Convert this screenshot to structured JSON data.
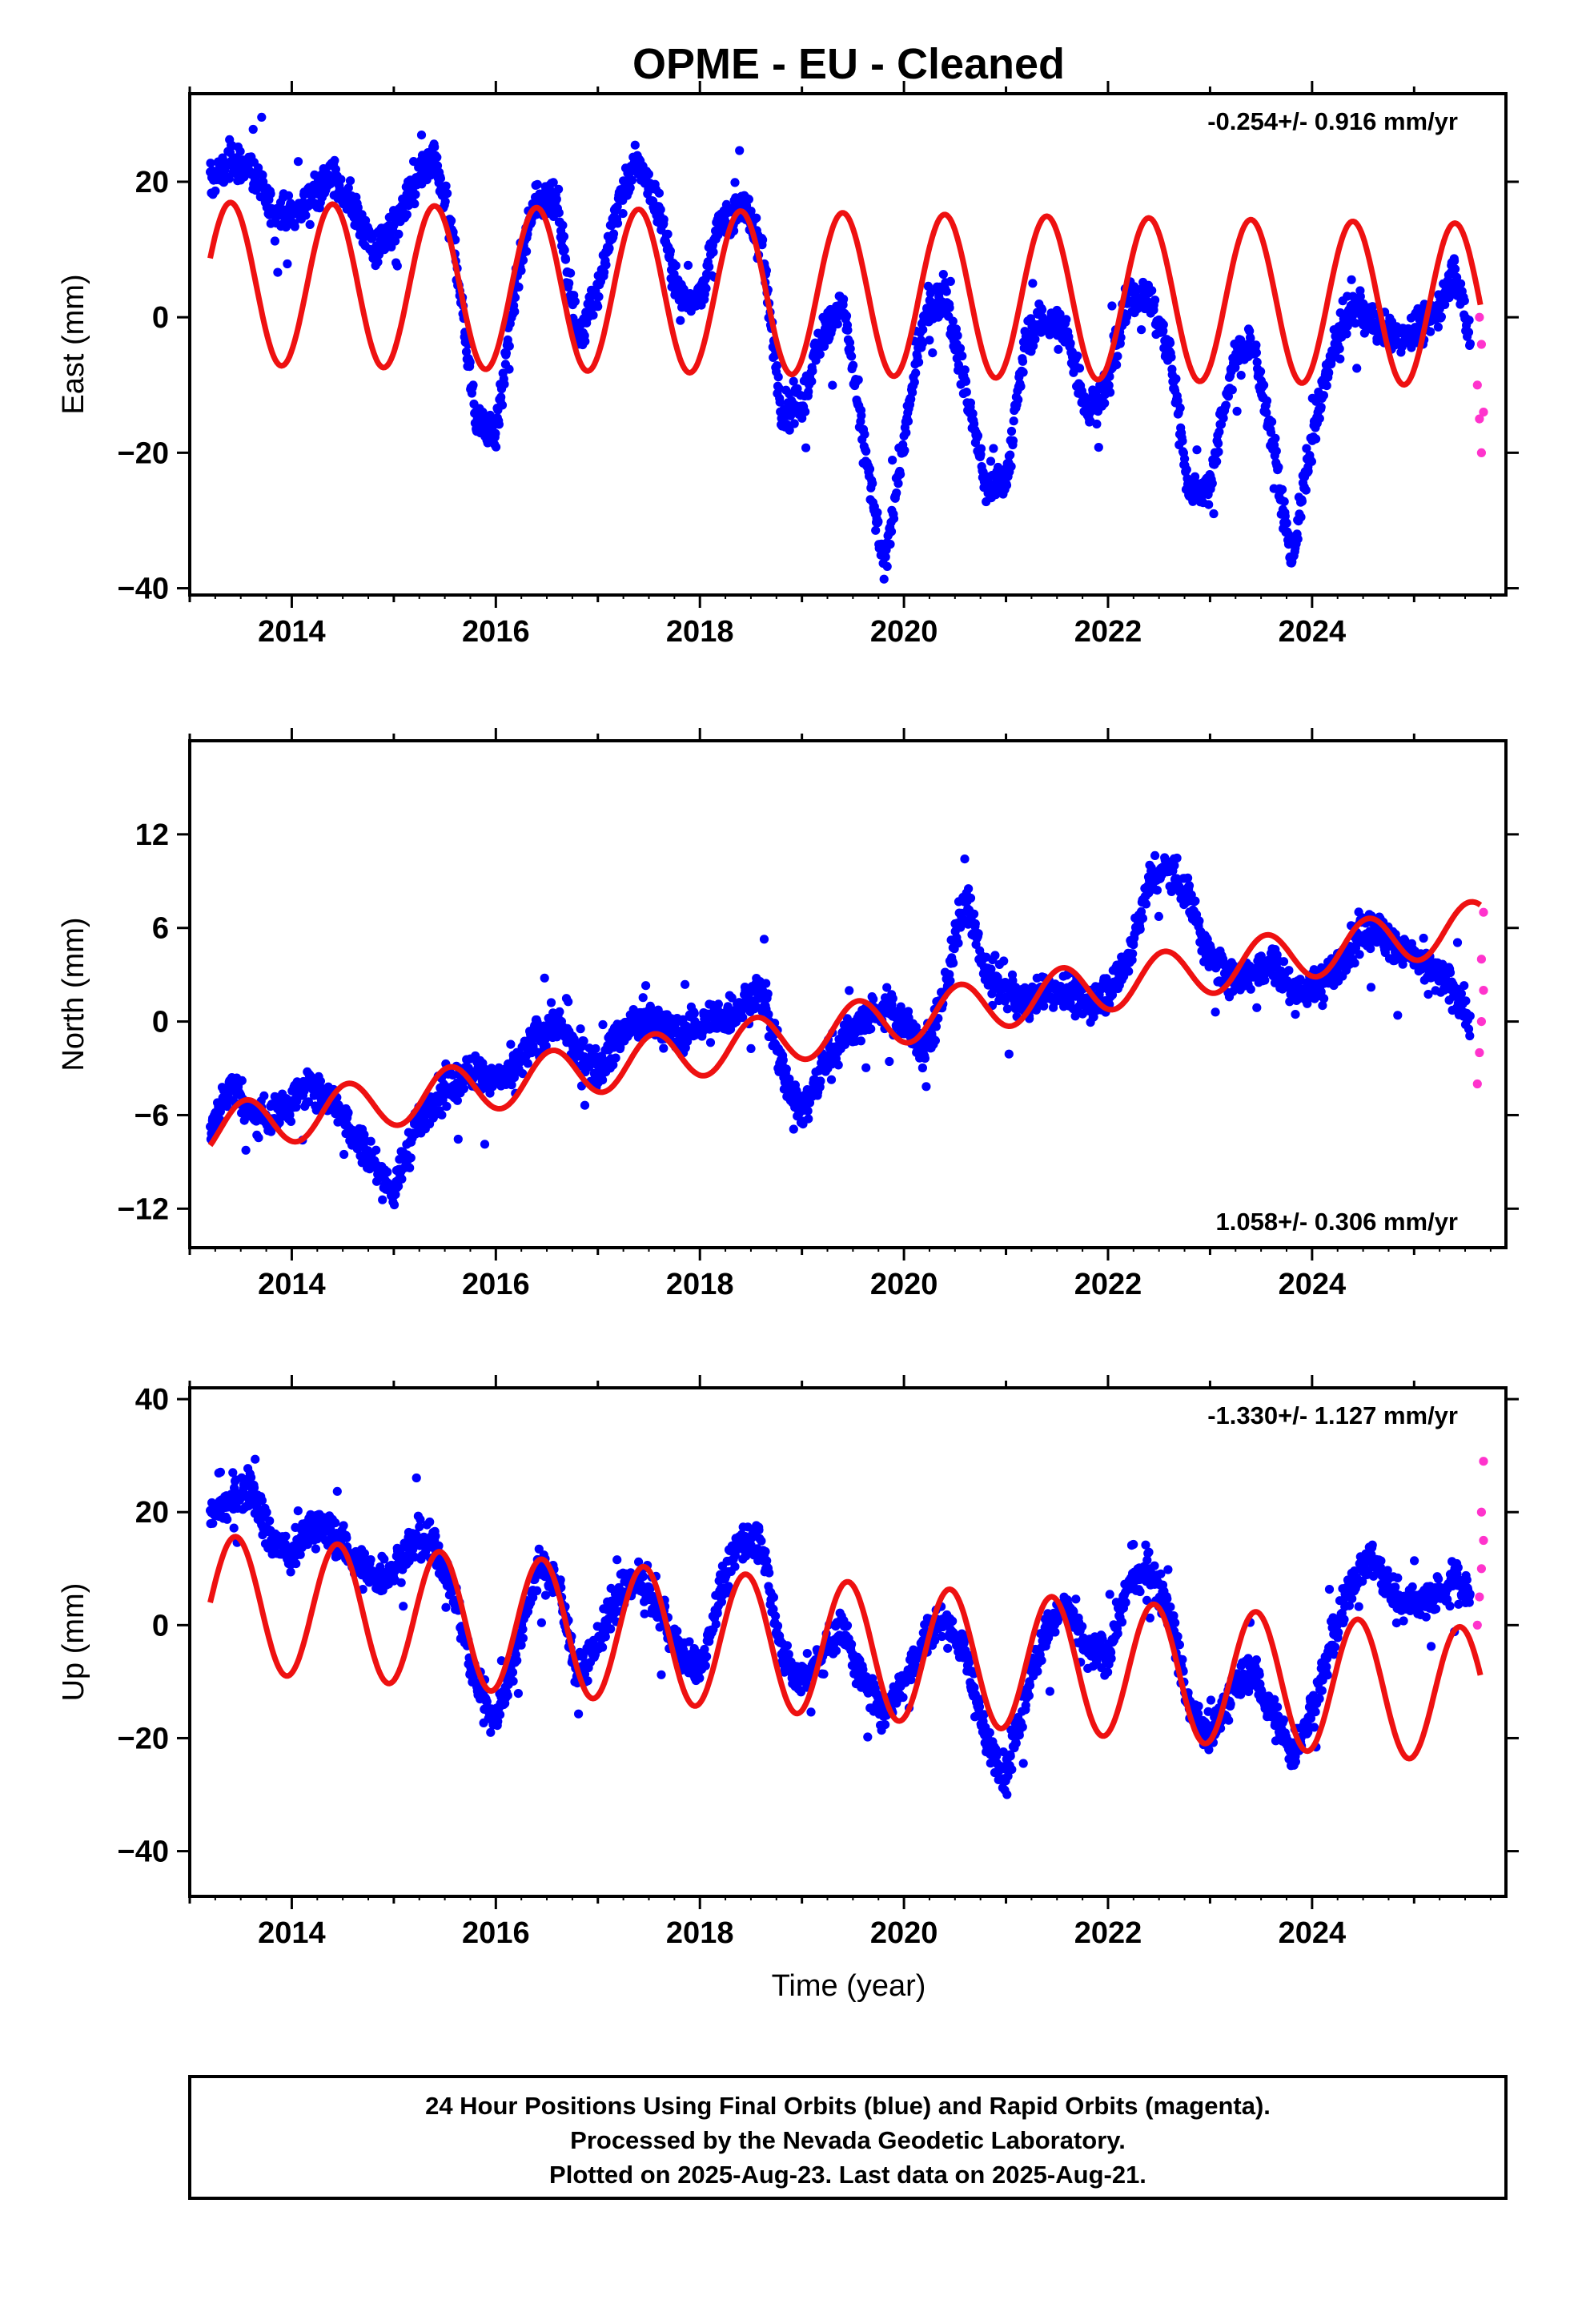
{
  "title": "OPME  - EU - Cleaned",
  "xlabel": "Time (year)",
  "footer": {
    "lines": [
      "24 Hour Positions Using Final Orbits (blue) and Rapid Orbits (magenta).",
      "Processed by the Nevada Geodetic Laboratory.",
      "Plotted on 2025-Aug-23. Last data on 2025-Aug-21."
    ]
  },
  "colors": {
    "final_orbits": "#0000ff",
    "rapid_orbits": "#ff33cc",
    "model": "#ee1111",
    "frame": "#000000"
  },
  "chart_data": [
    {
      "type": "scatter",
      "component": "East",
      "ylabel": "East (mm)",
      "rate": "-0.254+/- 0.916 mm/yr",
      "rate_position": "top-right",
      "xlim": [
        2013.0,
        2025.9
      ],
      "ylim": [
        -41,
        33
      ],
      "xticks": [
        2014,
        2016,
        2018,
        2020,
        2022,
        2024
      ],
      "yticks": [
        -40,
        -20,
        0,
        20
      ],
      "grid": false,
      "series": [
        {
          "kind": "final_orbits_scatter",
          "points": [
            [
              2013.2,
              20
            ],
            [
              2013.4,
              23
            ],
            [
              2013.6,
              22
            ],
            [
              2013.8,
              16
            ],
            [
              2014.0,
              15
            ],
            [
              2014.2,
              18
            ],
            [
              2014.4,
              21
            ],
            [
              2014.6,
              16
            ],
            [
              2014.8,
              10
            ],
            [
              2015.0,
              13
            ],
            [
              2015.2,
              19
            ],
            [
              2015.4,
              23
            ],
            [
              2015.6,
              10
            ],
            [
              2015.8,
              -15
            ],
            [
              2016.0,
              -17
            ],
            [
              2016.2,
              5
            ],
            [
              2016.4,
              18
            ],
            [
              2016.6,
              17
            ],
            [
              2016.8,
              -3
            ],
            [
              2017.0,
              4
            ],
            [
              2017.2,
              17
            ],
            [
              2017.4,
              23
            ],
            [
              2017.6,
              16
            ],
            [
              2017.8,
              3
            ],
            [
              2018.0,
              3
            ],
            [
              2018.2,
              14
            ],
            [
              2018.4,
              17
            ],
            [
              2018.6,
              11
            ],
            [
              2018.8,
              -14
            ],
            [
              2019.0,
              -13
            ],
            [
              2019.2,
              -2
            ],
            [
              2019.4,
              2
            ],
            [
              2019.6,
              -18
            ],
            [
              2019.8,
              -37
            ],
            [
              2020.0,
              -18
            ],
            [
              2020.2,
              0
            ],
            [
              2020.4,
              4
            ],
            [
              2020.6,
              -10
            ],
            [
              2020.8,
              -25
            ],
            [
              2021.0,
              -24
            ],
            [
              2021.2,
              -3
            ],
            [
              2021.4,
              0
            ],
            [
              2021.6,
              -3
            ],
            [
              2021.8,
              -14
            ],
            [
              2022.0,
              -10
            ],
            [
              2022.2,
              3
            ],
            [
              2022.4,
              3
            ],
            [
              2022.6,
              -5
            ],
            [
              2022.8,
              -26
            ],
            [
              2023.0,
              -25
            ],
            [
              2023.2,
              -8
            ],
            [
              2023.4,
              -3
            ],
            [
              2023.6,
              -17
            ],
            [
              2023.8,
              -36
            ],
            [
              2024.0,
              -18
            ],
            [
              2024.2,
              -5
            ],
            [
              2024.4,
              2
            ],
            [
              2024.6,
              -1
            ],
            [
              2024.8,
              -3
            ],
            [
              2025.0,
              -2
            ],
            [
              2025.2,
              0
            ],
            [
              2025.4,
              7
            ],
            [
              2025.55,
              -3
            ]
          ]
        },
        {
          "kind": "rapid_orbits_scatter",
          "points": [
            [
              2025.62,
              -10
            ],
            [
              2025.64,
              -15
            ],
            [
              2025.66,
              -20
            ],
            [
              2025.68,
              -14
            ],
            [
              2025.66,
              -4
            ],
            [
              2025.64,
              0
            ]
          ]
        },
        {
          "kind": "model_line",
          "trend": [
            5.0,
            -0.254
          ],
          "annual": 12.0,
          "annual_peak": 0.4
        }
      ]
    },
    {
      "type": "scatter",
      "component": "North",
      "ylabel": "North (mm)",
      "rate": "1.058+/- 0.306 mm/yr",
      "rate_position": "bottom-right",
      "xlim": [
        2013.0,
        2025.9
      ],
      "ylim": [
        -14.5,
        18
      ],
      "xticks": [
        2014,
        2016,
        2018,
        2020,
        2022,
        2024
      ],
      "yticks": [
        -12,
        -6,
        0,
        6,
        12
      ],
      "grid": false,
      "series": [
        {
          "kind": "final_orbits_scatter",
          "points": [
            [
              2013.2,
              -7
            ],
            [
              2013.4,
              -4
            ],
            [
              2013.6,
              -6
            ],
            [
              2013.8,
              -6
            ],
            [
              2014.0,
              -5
            ],
            [
              2014.2,
              -4
            ],
            [
              2014.4,
              -5
            ],
            [
              2014.6,
              -7
            ],
            [
              2014.8,
              -9
            ],
            [
              2015.0,
              -11
            ],
            [
              2015.2,
              -7
            ],
            [
              2015.4,
              -5
            ],
            [
              2015.6,
              -4
            ],
            [
              2015.8,
              -3
            ],
            [
              2016.0,
              -4
            ],
            [
              2016.2,
              -3
            ],
            [
              2016.4,
              -1
            ],
            [
              2016.6,
              0
            ],
            [
              2016.8,
              -2
            ],
            [
              2017.0,
              -3
            ],
            [
              2017.2,
              -1
            ],
            [
              2017.4,
              0
            ],
            [
              2017.6,
              0
            ],
            [
              2017.8,
              -1
            ],
            [
              2018.0,
              0
            ],
            [
              2018.2,
              0
            ],
            [
              2018.4,
              1
            ],
            [
              2018.6,
              2
            ],
            [
              2018.8,
              -3
            ],
            [
              2019.0,
              -6
            ],
            [
              2019.2,
              -3
            ],
            [
              2019.4,
              -1
            ],
            [
              2019.6,
              0
            ],
            [
              2019.8,
              1
            ],
            [
              2020.0,
              0
            ],
            [
              2020.2,
              -2
            ],
            [
              2020.4,
              2
            ],
            [
              2020.6,
              8
            ],
            [
              2020.8,
              3
            ],
            [
              2021.0,
              2
            ],
            [
              2021.2,
              1
            ],
            [
              2021.4,
              2
            ],
            [
              2021.6,
              2
            ],
            [
              2021.8,
              1
            ],
            [
              2022.0,
              2
            ],
            [
              2022.2,
              4
            ],
            [
              2022.4,
              9
            ],
            [
              2022.6,
              10
            ],
            [
              2022.8,
              8
            ],
            [
              2023.0,
              4
            ],
            [
              2023.2,
              3
            ],
            [
              2023.4,
              3
            ],
            [
              2023.6,
              4
            ],
            [
              2023.8,
              2
            ],
            [
              2024.0,
              2
            ],
            [
              2024.2,
              3
            ],
            [
              2024.4,
              5
            ],
            [
              2024.6,
              6
            ],
            [
              2024.8,
              5
            ],
            [
              2025.0,
              4
            ],
            [
              2025.2,
              3
            ],
            [
              2025.4,
              2
            ],
            [
              2025.55,
              0
            ]
          ]
        },
        {
          "kind": "rapid_orbits_scatter",
          "points": [
            [
              2025.62,
              -4
            ],
            [
              2025.64,
              -2
            ],
            [
              2025.66,
              0
            ],
            [
              2025.68,
              2
            ],
            [
              2025.66,
              4
            ],
            [
              2025.68,
              7
            ]
          ]
        },
        {
          "kind": "model_line",
          "trend": [
            -7.0,
            1.058
          ],
          "annual": 1.6,
          "annual_peak": 0.55
        }
      ]
    },
    {
      "type": "scatter",
      "component": "Up",
      "ylabel": "Up (mm)",
      "rate": "-1.330+/- 1.127 mm/yr",
      "rate_position": "top-right",
      "xlim": [
        2013.0,
        2025.9
      ],
      "ylim": [
        -48,
        42
      ],
      "xticks": [
        2014,
        2016,
        2018,
        2020,
        2022,
        2024
      ],
      "yticks": [
        -40,
        -20,
        0,
        20,
        40
      ],
      "grid": false,
      "series": [
        {
          "kind": "final_orbits_scatter",
          "points": [
            [
              2013.2,
              19
            ],
            [
              2013.4,
              22
            ],
            [
              2013.6,
              25
            ],
            [
              2013.8,
              15
            ],
            [
              2014.0,
              12
            ],
            [
              2014.2,
              18
            ],
            [
              2014.4,
              16
            ],
            [
              2014.6,
              12
            ],
            [
              2014.8,
              8
            ],
            [
              2015.0,
              10
            ],
            [
              2015.2,
              15
            ],
            [
              2015.4,
              14
            ],
            [
              2015.6,
              5
            ],
            [
              2015.8,
              -10
            ],
            [
              2016.0,
              -17
            ],
            [
              2016.2,
              -5
            ],
            [
              2016.4,
              10
            ],
            [
              2016.6,
              8
            ],
            [
              2016.8,
              -9
            ],
            [
              2017.0,
              -3
            ],
            [
              2017.2,
              5
            ],
            [
              2017.4,
              8
            ],
            [
              2017.6,
              3
            ],
            [
              2017.8,
              -5
            ],
            [
              2018.0,
              -8
            ],
            [
              2018.2,
              6
            ],
            [
              2018.4,
              15
            ],
            [
              2018.6,
              15
            ],
            [
              2018.8,
              -5
            ],
            [
              2019.0,
              -10
            ],
            [
              2019.2,
              -5
            ],
            [
              2019.4,
              0
            ],
            [
              2019.6,
              -10
            ],
            [
              2019.8,
              -15
            ],
            [
              2020.0,
              -10
            ],
            [
              2020.2,
              -2
            ],
            [
              2020.4,
              1
            ],
            [
              2020.6,
              -5
            ],
            [
              2020.8,
              -20
            ],
            [
              2021.0,
              -27
            ],
            [
              2021.2,
              -12
            ],
            [
              2021.4,
              0
            ],
            [
              2021.6,
              3
            ],
            [
              2021.8,
              -5
            ],
            [
              2022.0,
              -5
            ],
            [
              2022.2,
              7
            ],
            [
              2022.4,
              10
            ],
            [
              2022.6,
              3
            ],
            [
              2022.8,
              -15
            ],
            [
              2023.0,
              -20
            ],
            [
              2023.2,
              -12
            ],
            [
              2023.4,
              -8
            ],
            [
              2023.6,
              -15
            ],
            [
              2023.8,
              -23
            ],
            [
              2024.0,
              -15
            ],
            [
              2024.2,
              -3
            ],
            [
              2024.4,
              8
            ],
            [
              2024.6,
              12
            ],
            [
              2024.8,
              5
            ],
            [
              2025.0,
              4
            ],
            [
              2025.2,
              5
            ],
            [
              2025.4,
              8
            ],
            [
              2025.55,
              6
            ]
          ]
        },
        {
          "kind": "rapid_orbits_scatter",
          "points": [
            [
              2025.62,
              0
            ],
            [
              2025.64,
              5
            ],
            [
              2025.66,
              10
            ],
            [
              2025.68,
              15
            ],
            [
              2025.66,
              20
            ],
            [
              2025.68,
              29
            ]
          ]
        },
        {
          "kind": "model_line",
          "trend": [
            4.0,
            -1.33
          ],
          "annual": 12.0,
          "annual_peak": 0.45
        }
      ]
    }
  ]
}
